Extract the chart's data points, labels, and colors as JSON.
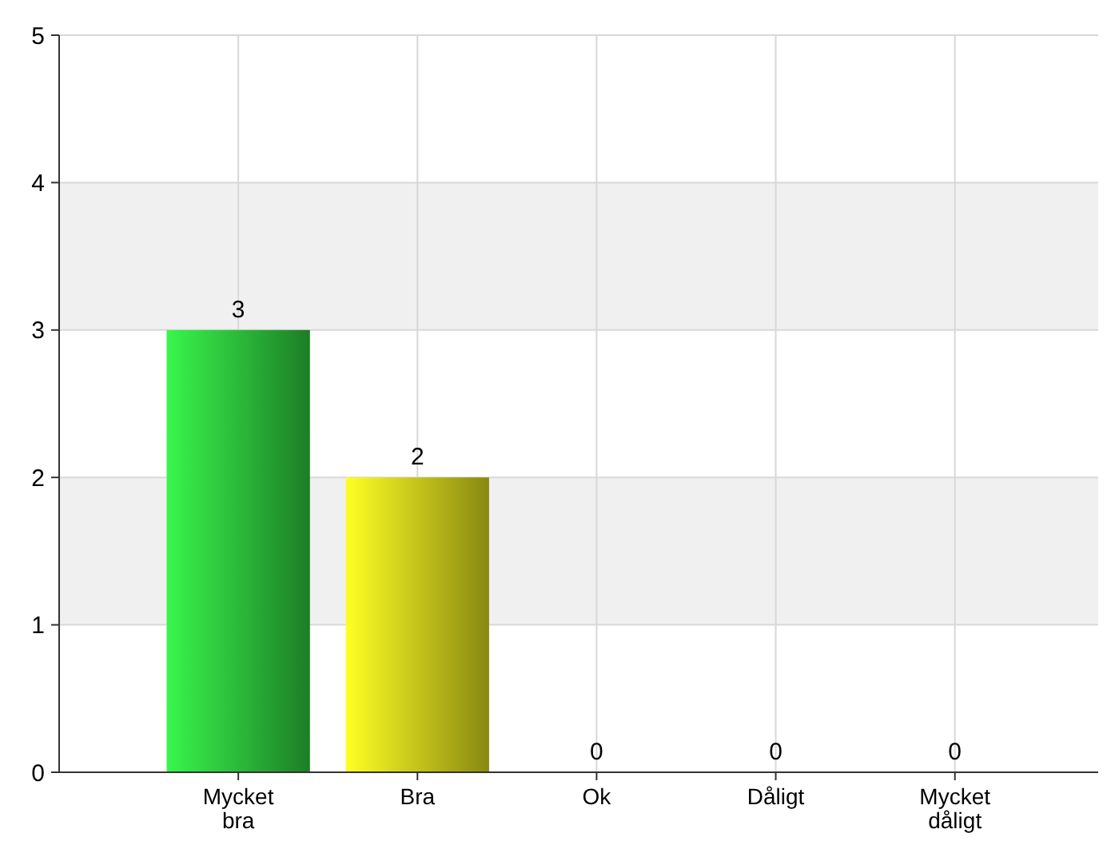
{
  "chart_data": {
    "type": "bar",
    "categories": [
      "Mycket bra",
      "Bra",
      "Ok",
      "Dåligt",
      "Mycket dåligt"
    ],
    "values": [
      3,
      2,
      0,
      0,
      0
    ],
    "colors": [
      "#33dd44",
      "#f0f020",
      "#cccccc",
      "#cccccc",
      "#cccccc"
    ],
    "ylim": [
      0,
      5
    ],
    "yticks": [
      0,
      1,
      2,
      3,
      4,
      5
    ],
    "grid": true,
    "data_labels": true
  }
}
